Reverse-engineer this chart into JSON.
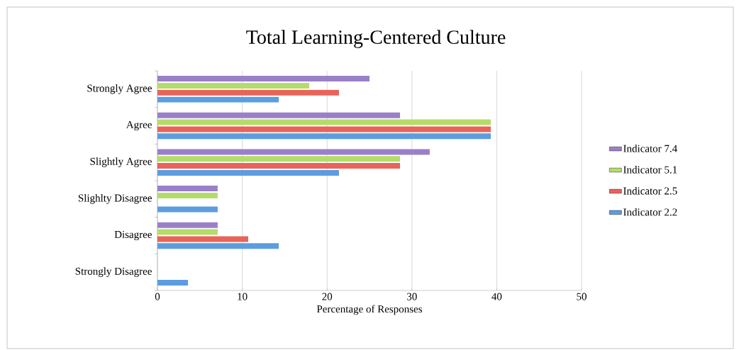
{
  "chart_data": {
    "type": "bar",
    "orientation": "horizontal",
    "title": "Total Learning-Centered Culture",
    "xlabel": "Percentage of Responses",
    "categories": [
      "Strongly Agree",
      "Agree",
      "Slightly Agree",
      "Slighlty Disagree",
      "Disagree",
      "Strongly Disagree"
    ],
    "series": [
      {
        "name": "Indicator 7.4",
        "color": "#9a80c8",
        "values": [
          25.0,
          28.6,
          32.1,
          7.1,
          7.1,
          0
        ]
      },
      {
        "name": "Indicator 5.1",
        "color": "#b5dc6a",
        "values": [
          17.9,
          39.3,
          28.6,
          7.1,
          7.1,
          0
        ]
      },
      {
        "name": "Indicator 2.5",
        "color": "#e8645a",
        "values": [
          21.4,
          39.3,
          28.6,
          0,
          10.7,
          0
        ]
      },
      {
        "name": "Indicator 2.2",
        "color": "#5b9de0",
        "values": [
          14.3,
          39.3,
          21.4,
          7.1,
          14.3,
          3.6
        ]
      }
    ],
    "xlim": [
      0,
      50
    ],
    "xticks": [
      0,
      10,
      20,
      30,
      40,
      50
    ],
    "grid": "x",
    "legend": "right"
  }
}
